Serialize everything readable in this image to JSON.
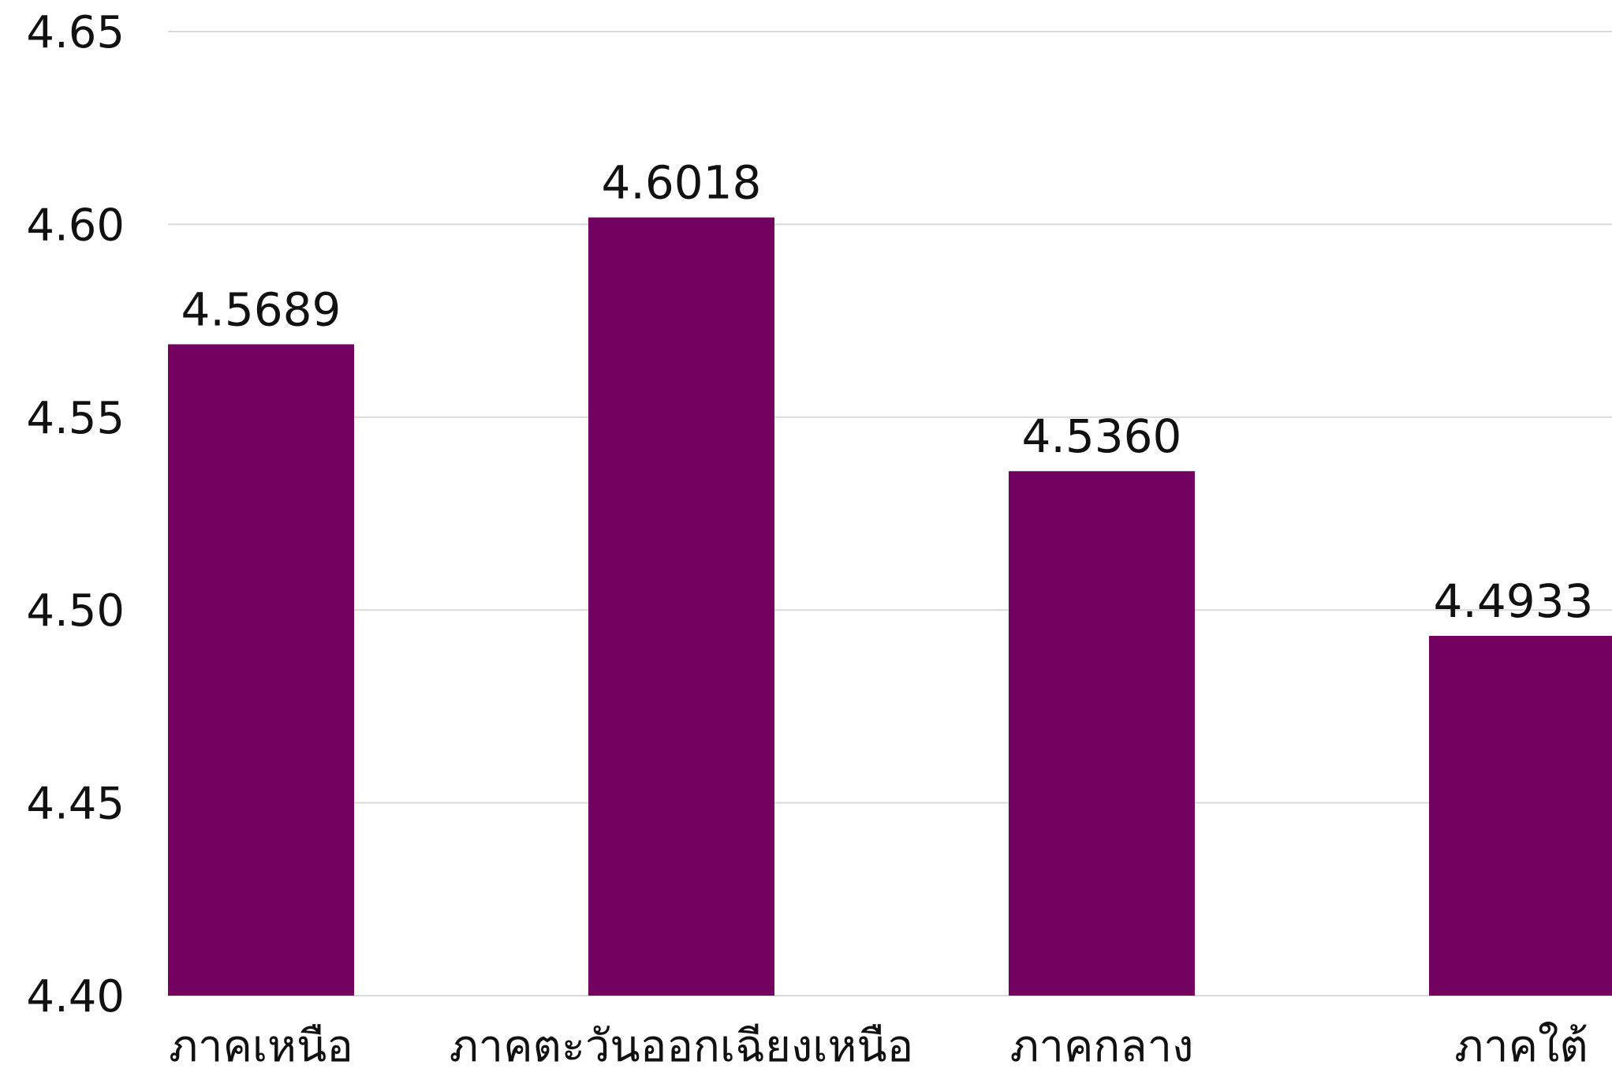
{
  "chart_data": {
    "type": "bar",
    "categories": [
      "ภาคเหนือ",
      "ภาคตะวันออกเฉียงเหนือ",
      "ภาคกลาง",
      "ภาคใต้"
    ],
    "values": [
      4.5689,
      4.6018,
      4.536,
      4.4933
    ],
    "data_labels": [
      "4.5689",
      "4.6018",
      "4.5360",
      "4.4933"
    ],
    "y_ticks": [
      4.4,
      4.45,
      4.5,
      4.55,
      4.6,
      4.65
    ],
    "y_tick_labels": [
      "4.40",
      "4.45",
      "4.50",
      "4.55",
      "4.60",
      "4.65"
    ],
    "ylim": [
      4.4,
      4.65
    ],
    "grid": true,
    "legend": "none",
    "title": "",
    "xlabel": "",
    "ylabel": "",
    "bar_color": "#730160",
    "grid_color": "#d9d9d9",
    "text_color": "#111111"
  }
}
